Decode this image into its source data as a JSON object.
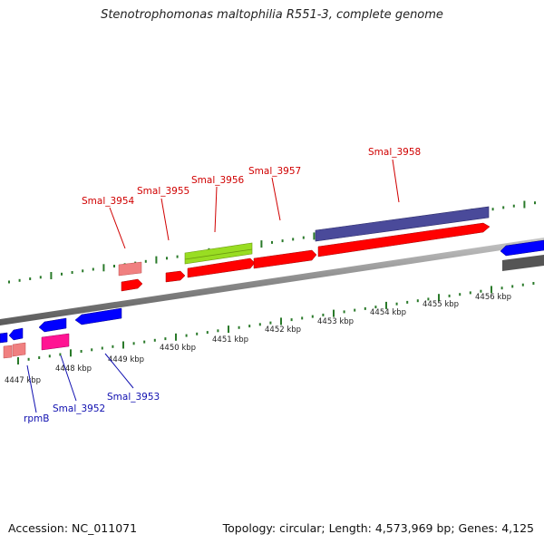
{
  "title": "Stenotrophomonas maltophilia R551-3, complete genome",
  "footer": {
    "accession": "Accession: NC_011071",
    "stats": "Topology: circular; Length: 4,573,969 bp; Genes: 4,125"
  },
  "scale_labels": [
    "4447 kbp",
    "4448 kbp",
    "4449 kbp",
    "4450 kbp",
    "4451 kbp",
    "4452 kbp",
    "4453 kbp",
    "4454 kbp",
    "4455 kbp",
    "4456 kbp"
  ],
  "forward_gene_labels": [
    "Smal_3954",
    "Smal_3955",
    "Smal_3956",
    "Smal_3957",
    "Smal_3958"
  ],
  "reverse_gene_labels": [
    "rpmB",
    "Smal_3952",
    "Smal_3953"
  ],
  "colors": {
    "forward_cds": "#ff0000",
    "reverse_cds": "#0000ff",
    "pseudo": "#f08080",
    "rna": "#ff1493",
    "green_feature": "#99dd22",
    "purple_feature": "#4a4a9a",
    "gray_feature": "#555555",
    "backbone": "#909090",
    "tick": "#2a7a2a",
    "forward_label": "#d00000",
    "reverse_label": "#1010b0"
  }
}
